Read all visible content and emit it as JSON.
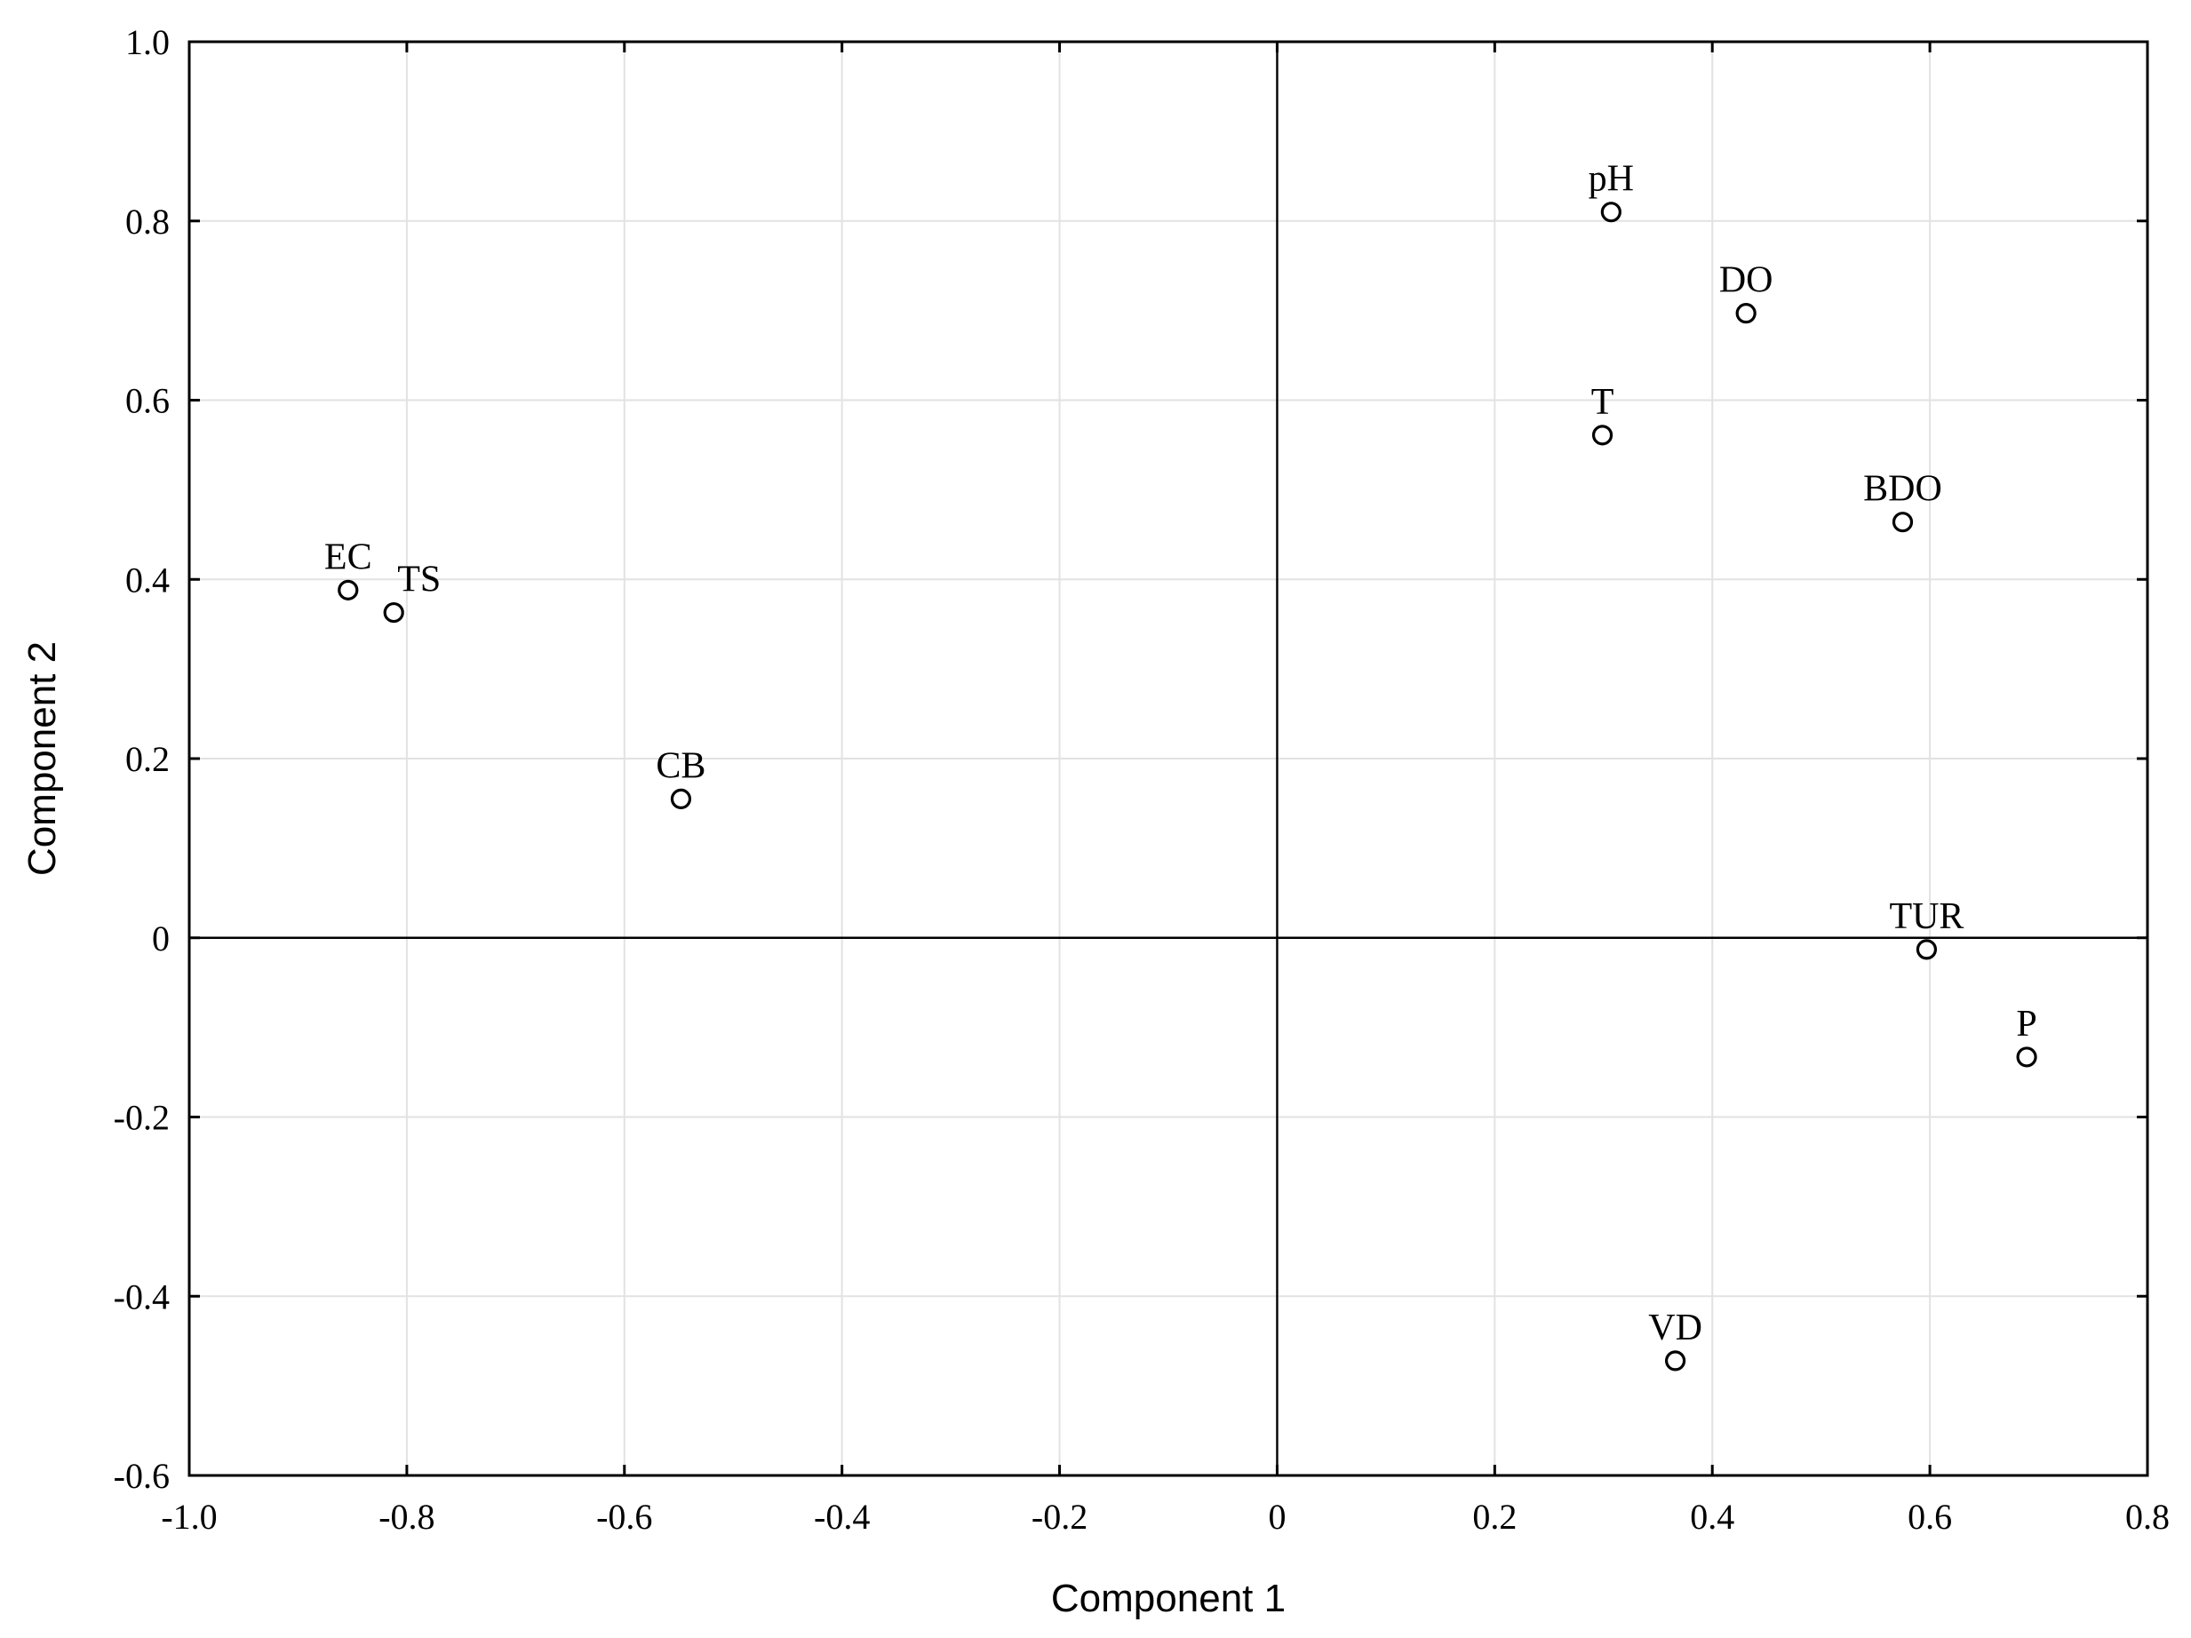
{
  "chart_data": {
    "type": "scatter",
    "title": "",
    "xlabel": "Component 1",
    "ylabel": "Component 2",
    "xlim": [
      -1.0,
      0.8
    ],
    "ylim": [
      -0.6,
      1.0
    ],
    "x_ticks": [
      -1.0,
      -0.8,
      -0.6,
      -0.4,
      -0.2,
      0,
      0.2,
      0.4,
      0.6,
      0.8
    ],
    "x_tick_labels": [
      "-1.0",
      "-0.8",
      "-0.6",
      "-0.4",
      "-0.2",
      "0",
      "0.2",
      "0.4",
      "0.6",
      "0.8"
    ],
    "y_ticks": [
      -0.6,
      -0.4,
      -0.2,
      0,
      0.2,
      0.4,
      0.6,
      0.8,
      1.0
    ],
    "y_tick_labels": [
      "-0.6",
      "-0.4",
      "-0.2",
      "0",
      "0.2",
      "0.4",
      "0.6",
      "0.8",
      "1.0"
    ],
    "grid": true,
    "reference_lines": {
      "x": 0,
      "y": 0
    },
    "points": [
      {
        "label": "pH",
        "x": 0.307,
        "y": 0.81
      },
      {
        "label": "DO",
        "x": 0.431,
        "y": 0.697
      },
      {
        "label": "T",
        "x": 0.299,
        "y": 0.561
      },
      {
        "label": "BDO",
        "x": 0.575,
        "y": 0.464
      },
      {
        "label": "EC",
        "x": -0.854,
        "y": 0.388
      },
      {
        "label": "TS",
        "x": -0.812,
        "y": 0.363
      },
      {
        "label": "CB",
        "x": -0.548,
        "y": 0.155
      },
      {
        "label": "TUR",
        "x": 0.597,
        "y": -0.013
      },
      {
        "label": "P",
        "x": 0.689,
        "y": -0.133
      },
      {
        "label": "VD",
        "x": 0.366,
        "y": -0.472
      }
    ]
  }
}
